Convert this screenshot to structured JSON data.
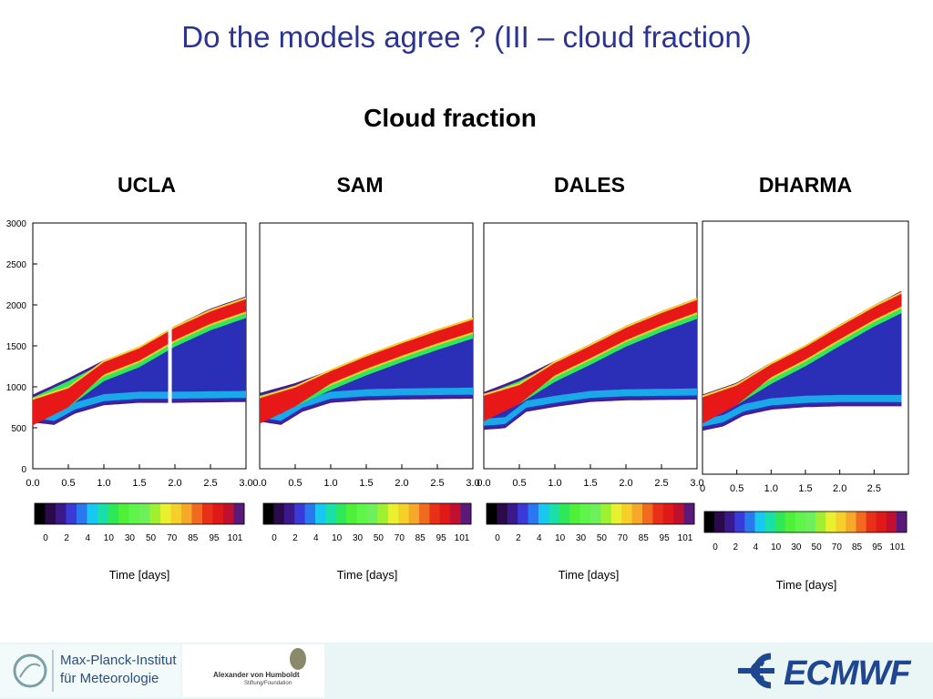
{
  "slide": {
    "title": "Do the models agree ? (III – cloud fraction)",
    "subtitle": "Cloud fraction"
  },
  "colorbar": {
    "tick_labels": [
      "0",
      "2",
      "4",
      "10",
      "30",
      "50",
      "70",
      "85",
      "95",
      "101"
    ],
    "colors": [
      "#000000",
      "#2a0a4a",
      "#3a1a8a",
      "#3a3ad8",
      "#2a78f0",
      "#18c8f0",
      "#18e0a8",
      "#2ee85a",
      "#4ff03a",
      "#5ff54a",
      "#6ef05a",
      "#9ef030",
      "#e8f030",
      "#f5d02a",
      "#f5a82a",
      "#f06a20",
      "#e83018",
      "#e01818",
      "#c01030",
      "#5a1a7a"
    ]
  },
  "chart_data": [
    {
      "type": "heatmap",
      "title": "UCLA",
      "xlabel": "Time [days]",
      "ylabel": "",
      "xlim": [
        0,
        3.0
      ],
      "ylim": [
        0,
        3000
      ],
      "x_ticks": [
        "0.0",
        "0.5",
        "1.0",
        "1.5",
        "2.0",
        "2.5",
        "3.0"
      ],
      "y_ticks": [
        "0",
        "500",
        "1000",
        "1500",
        "2000",
        "2500",
        "3000"
      ],
      "show_y_ticks": true,
      "gap_at_day": 1.93,
      "cloud_top": [
        [
          0,
          880
        ],
        [
          0.5,
          1080
        ],
        [
          1.0,
          1300
        ],
        [
          1.5,
          1460
        ],
        [
          2.0,
          1720
        ],
        [
          2.5,
          1930
        ],
        [
          3.0,
          2080
        ]
      ],
      "cloud_base": [
        [
          0,
          590
        ],
        [
          0.3,
          560
        ],
        [
          0.6,
          700
        ],
        [
          1.0,
          800
        ],
        [
          1.5,
          830
        ],
        [
          2.0,
          830
        ],
        [
          3.0,
          840
        ]
      ],
      "core_layer": [
        [
          0,
          780
        ],
        [
          0.5,
          920
        ],
        [
          1.0,
          1240
        ],
        [
          1.5,
          1410
        ],
        [
          2.0,
          1660
        ],
        [
          2.5,
          1860
        ],
        [
          3.0,
          2010
        ]
      ]
    },
    {
      "type": "heatmap",
      "title": "SAM",
      "xlabel": "Time [days]",
      "ylabel": "",
      "xlim": [
        0,
        3.0
      ],
      "ylim": [
        0,
        3000
      ],
      "x_ticks": [
        "0.0",
        "0.5",
        "1.0",
        "1.5",
        "2.0",
        "2.5",
        "3.0"
      ],
      "y_ticks": [],
      "show_y_ticks": false,
      "cloud_top": [
        [
          0,
          900
        ],
        [
          0.5,
          1020
        ],
        [
          1.0,
          1180
        ],
        [
          1.5,
          1360
        ],
        [
          2.0,
          1520
        ],
        [
          2.5,
          1680
        ],
        [
          3.0,
          1810
        ]
      ],
      "cloud_base": [
        [
          0,
          600
        ],
        [
          0.3,
          560
        ],
        [
          0.6,
          720
        ],
        [
          1.0,
          830
        ],
        [
          1.5,
          860
        ],
        [
          2.0,
          870
        ],
        [
          3.0,
          880
        ]
      ],
      "core_layer": [
        [
          0,
          800
        ],
        [
          0.5,
          930
        ],
        [
          1.0,
          1130
        ],
        [
          1.5,
          1310
        ],
        [
          2.0,
          1470
        ],
        [
          2.5,
          1620
        ],
        [
          3.0,
          1760
        ]
      ]
    },
    {
      "type": "heatmap",
      "title": "DALES",
      "xlabel": "Time [days]",
      "ylabel": "",
      "xlim": [
        0,
        3.0
      ],
      "ylim": [
        0,
        3000
      ],
      "x_ticks": [
        "0.0",
        "0.5",
        "1.0",
        "1.5",
        "2.0",
        "2.5",
        "3.0"
      ],
      "y_ticks": [],
      "show_y_ticks": false,
      "cloud_top": [
        [
          0,
          910
        ],
        [
          0.5,
          1080
        ],
        [
          1.0,
          1290
        ],
        [
          1.5,
          1500
        ],
        [
          2.0,
          1720
        ],
        [
          2.5,
          1900
        ],
        [
          3.0,
          2060
        ]
      ],
      "cloud_base": [
        [
          0,
          500
        ],
        [
          0.3,
          520
        ],
        [
          0.6,
          720
        ],
        [
          1.0,
          780
        ],
        [
          1.5,
          840
        ],
        [
          2.0,
          860
        ],
        [
          3.0,
          870
        ]
      ],
      "core_layer": [
        [
          0,
          830
        ],
        [
          0.5,
          960
        ],
        [
          1.0,
          1230
        ],
        [
          1.5,
          1440
        ],
        [
          2.0,
          1660
        ],
        [
          2.5,
          1840
        ],
        [
          3.0,
          2000
        ]
      ]
    },
    {
      "type": "heatmap",
      "title": "DHARMA",
      "xlabel": "Time [days]",
      "ylabel": "",
      "xlim": [
        0,
        3.0
      ],
      "ylim": [
        0,
        3000
      ],
      "x_ticks": [
        "0",
        "0.5",
        "1.0",
        "1.5",
        "2.0",
        "2.5"
      ],
      "y_ticks": [],
      "show_y_ticks": false,
      "cloud_top": [
        [
          0,
          920
        ],
        [
          0.5,
          1060
        ],
        [
          1.0,
          1300
        ],
        [
          1.5,
          1500
        ],
        [
          2.0,
          1750
        ],
        [
          2.5,
          1980
        ],
        [
          2.9,
          2150
        ]
      ],
      "cloud_base": [
        [
          0,
          540
        ],
        [
          0.3,
          590
        ],
        [
          0.6,
          720
        ],
        [
          1.0,
          790
        ],
        [
          1.5,
          820
        ],
        [
          2.0,
          830
        ],
        [
          2.9,
          830
        ]
      ],
      "core_layer": [
        [
          0,
          850
        ],
        [
          0.5,
          990
        ],
        [
          1.0,
          1240
        ],
        [
          1.5,
          1450
        ],
        [
          2.0,
          1690
        ],
        [
          2.5,
          1920
        ],
        [
          2.9,
          2080
        ]
      ]
    }
  ],
  "footer": {
    "mpi_line1": "Max-Planck-Institut",
    "mpi_line2": "für Meteorologie",
    "humboldt_name": "Alexander von Humboldt",
    "humboldt_sub": "Stiftung/Foundation",
    "ecmwf": "ECMWF"
  }
}
